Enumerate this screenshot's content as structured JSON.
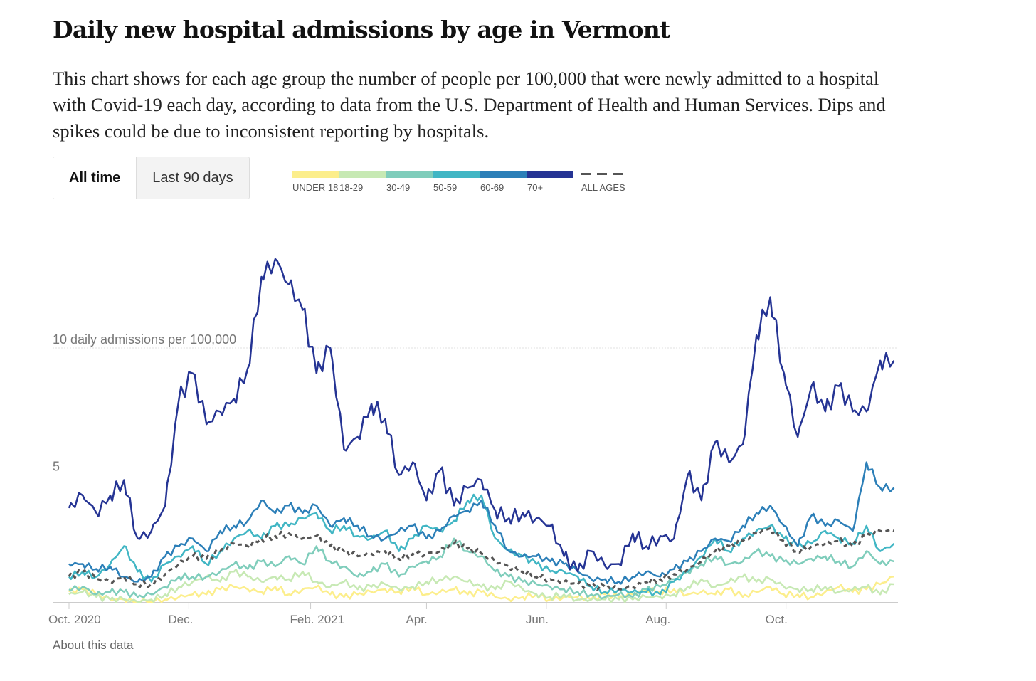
{
  "header": {
    "title": "Daily new hospital admissions by age in Vermont",
    "description": "This chart shows for each age group the number of people per 100,000 that were newly admitted to a hospital with Covid-19 each day, according to data from the U.S. Department of Health and Human Services. Dips and spikes could be due to inconsistent reporting by hospitals."
  },
  "toggle": {
    "options": [
      "All time",
      "Last 90 days"
    ],
    "selected": "All time"
  },
  "footer": {
    "about_link": "About this data"
  },
  "chart_data": {
    "type": "line",
    "title": "Daily new hospital admissions by age in Vermont",
    "ylabel": "daily admissions per 100,000",
    "ylim": [
      0,
      14.5
    ],
    "y_ticks": [
      {
        "value": 5,
        "label": "5"
      },
      {
        "value": 10,
        "label": "10 daily admissions per 100,000"
      }
    ],
    "x_ticks": [
      {
        "day": 0,
        "label": "Oct. 2020"
      },
      {
        "day": 61,
        "label": "Dec."
      },
      {
        "day": 123,
        "label": "Feb. 2021"
      },
      {
        "day": 182,
        "label": "Apr."
      },
      {
        "day": 243,
        "label": "Jun."
      },
      {
        "day": 304,
        "label": "Aug."
      },
      {
        "day": 365,
        "label": "Oct."
      }
    ],
    "x_days_step": 7,
    "xlim": [
      0,
      422
    ],
    "grid": true,
    "legend_placement": "top",
    "series": [
      {
        "name": "UNDER 18",
        "color": "#fcee8c",
        "dashed": false,
        "values": [
          0.4,
          0.5,
          0.3,
          0.1,
          0.1,
          0.0,
          0.0,
          0.1,
          0.2,
          0.3,
          0.3,
          0.5,
          0.6,
          0.5,
          0.4,
          0.6,
          0.3,
          0.5,
          0.6,
          0.3,
          0.2,
          0.3,
          0.4,
          0.5,
          0.4,
          0.6,
          0.3,
          0.4,
          0.5,
          0.3,
          0.4,
          0.2,
          0.1,
          0.2,
          0.3,
          0.1,
          0.2,
          0.2,
          0.1,
          0.3,
          0.2,
          0.3,
          0.5,
          0.4,
          0.5,
          0.3,
          0.4,
          0.3,
          0.5,
          0.2,
          0.4,
          0.6,
          0.3,
          0.3,
          0.2,
          0.4,
          0.6,
          0.4,
          0.5,
          0.7,
          1.0
        ]
      },
      {
        "name": "18-29",
        "color": "#c7e9b4",
        "dashed": false,
        "values": [
          0.3,
          0.4,
          0.2,
          0.1,
          0.1,
          0.0,
          0.1,
          0.3,
          0.6,
          0.8,
          1.0,
          0.8,
          1.2,
          1.0,
          0.8,
          1.0,
          0.9,
          1.2,
          0.8,
          0.6,
          0.8,
          0.5,
          0.6,
          0.7,
          0.5,
          0.6,
          0.8,
          0.9,
          1.0,
          0.8,
          0.6,
          0.5,
          0.8,
          0.5,
          0.3,
          0.2,
          0.3,
          0.1,
          0.1,
          0.1,
          0.1,
          0.1,
          0.2,
          0.2,
          0.3,
          0.6,
          0.9,
          0.6,
          0.8,
          1.0,
          0.8,
          0.9,
          0.6,
          0.5,
          0.5,
          0.6,
          0.4,
          0.5,
          0.6,
          0.3,
          0.7
        ]
      },
      {
        "name": "30-49",
        "color": "#7fcdbb",
        "dashed": false,
        "values": [
          0.5,
          0.6,
          0.3,
          0.4,
          0.4,
          0.2,
          0.3,
          0.6,
          1.0,
          1.0,
          1.0,
          1.2,
          1.5,
          1.3,
          1.6,
          1.4,
          1.8,
          1.5,
          2.2,
          1.6,
          1.4,
          1.0,
          1.2,
          1.5,
          1.0,
          1.4,
          1.6,
          1.8,
          2.5,
          2.0,
          1.8,
          1.2,
          1.0,
          0.8,
          0.7,
          0.6,
          0.5,
          0.4,
          0.3,
          0.2,
          0.3,
          0.2,
          0.5,
          0.6,
          0.9,
          1.2,
          1.5,
          1.8,
          1.5,
          1.6,
          2.0,
          1.8,
          1.6,
          1.5,
          1.7,
          1.8,
          1.6,
          1.4,
          2.0,
          1.5,
          1.6
        ]
      },
      {
        "name": "50-59",
        "color": "#41b6c4",
        "dashed": false,
        "values": [
          1.0,
          1.2,
          1.0,
          1.5,
          2.2,
          1.2,
          0.8,
          1.5,
          1.8,
          2.2,
          1.5,
          2.0,
          2.5,
          2.8,
          2.5,
          3.0,
          3.0,
          3.3,
          3.5,
          2.8,
          3.0,
          2.6,
          2.5,
          2.8,
          2.0,
          2.5,
          3.0,
          2.8,
          3.2,
          4.0,
          4.2,
          2.5,
          2.0,
          1.8,
          1.5,
          1.2,
          1.2,
          1.0,
          0.6,
          0.4,
          0.5,
          0.4,
          0.4,
          0.3,
          0.8,
          1.2,
          1.8,
          2.5,
          2.0,
          2.5,
          2.8,
          3.0,
          2.5,
          2.2,
          2.3,
          2.8,
          2.5,
          2.3,
          3.0,
          2.0,
          2.3
        ]
      },
      {
        "name": "60-69",
        "color": "#2c7fb8",
        "dashed": false,
        "values": [
          1.5,
          1.5,
          1.3,
          1.4,
          1.0,
          0.8,
          1.0,
          1.8,
          2.2,
          2.5,
          2.0,
          2.8,
          3.0,
          3.2,
          4.0,
          3.5,
          3.8,
          3.5,
          3.8,
          3.0,
          3.3,
          3.0,
          2.6,
          2.5,
          2.8,
          3.0,
          2.5,
          2.8,
          3.4,
          3.6,
          4.0,
          3.0,
          2.0,
          1.8,
          1.8,
          1.6,
          1.5,
          1.2,
          0.9,
          0.9,
          0.8,
          1.0,
          1.2,
          1.0,
          1.3,
          1.6,
          2.0,
          2.5,
          2.4,
          3.0,
          3.5,
          3.8,
          3.0,
          2.2,
          3.4,
          3.0,
          3.2,
          2.8,
          5.5,
          4.5,
          4.5
        ]
      },
      {
        "name": "70+",
        "color": "#253494",
        "dashed": false,
        "values": [
          3.7,
          4.2,
          3.5,
          4.2,
          4.8,
          2.5,
          2.8,
          3.8,
          8.0,
          9.0,
          7.0,
          7.5,
          8.0,
          9.2,
          12.8,
          13.5,
          12.5,
          11.5,
          9.0,
          10.0,
          6.0,
          6.5,
          7.8,
          7.2,
          5.0,
          5.5,
          4.0,
          5.2,
          3.8,
          4.5,
          4.8,
          3.6,
          3.3,
          3.5,
          3.3,
          3.0,
          1.8,
          1.2,
          2.0,
          1.4,
          1.5,
          2.7,
          2.2,
          2.6,
          2.5,
          5.0,
          4.0,
          6.3,
          5.5,
          6.2,
          10.5,
          12.0,
          9.0,
          6.5,
          8.5,
          7.5,
          8.5,
          7.5,
          7.5,
          9.5,
          9.5
        ]
      },
      {
        "name": "ALL AGES",
        "color": "#555555",
        "dashed": true,
        "values": [
          1.0,
          1.2,
          0.9,
          0.8,
          1.0,
          0.7,
          0.7,
          1.1,
          1.5,
          1.8,
          1.7,
          2.0,
          2.3,
          2.2,
          2.5,
          2.6,
          2.7,
          2.5,
          2.6,
          2.2,
          2.0,
          1.8,
          1.9,
          2.0,
          1.7,
          1.9,
          1.9,
          2.0,
          2.3,
          2.1,
          1.9,
          1.6,
          1.4,
          1.2,
          1.0,
          0.9,
          0.8,
          0.7,
          0.6,
          0.6,
          0.5,
          0.6,
          0.8,
          0.9,
          1.1,
          1.3,
          1.6,
          2.0,
          2.2,
          2.4,
          2.7,
          2.9,
          2.4,
          2.0,
          2.2,
          2.3,
          2.4,
          2.2,
          2.6,
          2.8,
          2.8
        ]
      }
    ]
  }
}
